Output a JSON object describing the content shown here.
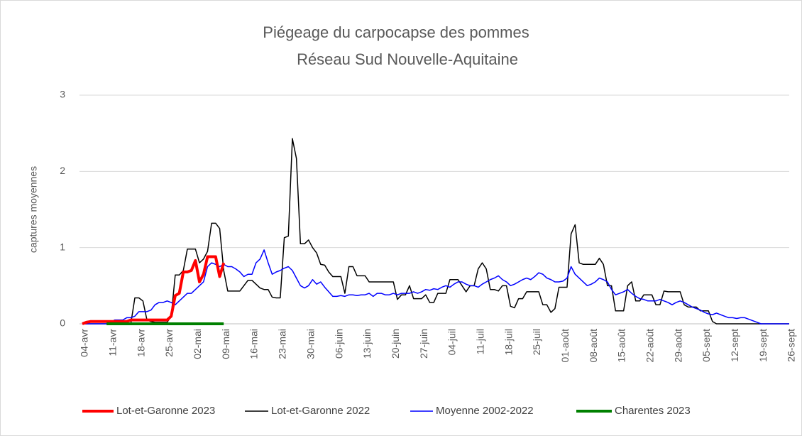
{
  "chart_data": {
    "type": "line",
    "title": "Piégeage du carpocapse des pommes",
    "subtitle": "Réseau Sud Nouvelle-Aquitaine",
    "y_label": "captures moyennes",
    "ylim": [
      0,
      3
    ],
    "yticks": [
      0,
      1,
      2,
      3
    ],
    "grid": true,
    "legend": "bottom",
    "categories": [
      "04-avr",
      null,
      null,
      null,
      null,
      null,
      null,
      "11-avr",
      null,
      null,
      null,
      null,
      null,
      null,
      "18-avr",
      null,
      null,
      null,
      null,
      null,
      null,
      "25-avr",
      null,
      null,
      null,
      null,
      null,
      null,
      "02-mai",
      null,
      null,
      null,
      null,
      null,
      null,
      "09-mai",
      null,
      null,
      null,
      null,
      null,
      null,
      "16-mai",
      null,
      null,
      null,
      null,
      null,
      null,
      "23-mai",
      null,
      null,
      null,
      null,
      null,
      null,
      "30-mai",
      null,
      null,
      null,
      null,
      null,
      null,
      "06-juin",
      null,
      null,
      null,
      null,
      null,
      null,
      "13-juin",
      null,
      null,
      null,
      null,
      null,
      null,
      "20-juin",
      null,
      null,
      null,
      null,
      null,
      null,
      "27-juin",
      null,
      null,
      null,
      null,
      null,
      null,
      "04-juil",
      null,
      null,
      null,
      null,
      null,
      null,
      "11-juil",
      null,
      null,
      null,
      null,
      null,
      null,
      "18-juil",
      null,
      null,
      null,
      null,
      null,
      null,
      "25-juil",
      null,
      null,
      null,
      null,
      null,
      null,
      "01-août",
      null,
      null,
      null,
      null,
      null,
      null,
      "08-août",
      null,
      null,
      null,
      null,
      null,
      null,
      "15-août",
      null,
      null,
      null,
      null,
      null,
      null,
      "22-août",
      null,
      null,
      null,
      null,
      null,
      null,
      "29-août",
      null,
      null,
      null,
      null,
      null,
      null,
      "05-sept",
      null,
      null,
      null,
      null,
      null,
      null,
      "12-sept",
      null,
      null,
      null,
      null,
      null,
      null,
      "19-sept",
      null,
      null,
      null,
      null,
      null,
      null,
      "26-sept"
    ],
    "series": [
      {
        "name": "Lot-et-Garonne 2023",
        "color": "#ff0000",
        "values": [
          0,
          0.02,
          0.03,
          0.03,
          0.03,
          0.03,
          0.03,
          0.03,
          0.03,
          0.03,
          0.03,
          0.03,
          0.05,
          0.05,
          0.05,
          0.05,
          0.05,
          0.05,
          0.05,
          0.05,
          0.05,
          0.05,
          0.1,
          0.37,
          0.4,
          0.68,
          0.68,
          0.7,
          0.83,
          0.55,
          0.65,
          0.88,
          0.88,
          0.88,
          0.62,
          0.8,
          null,
          null,
          null,
          null,
          null,
          null,
          null,
          null,
          null,
          null,
          null,
          null,
          null,
          null,
          null,
          null,
          null,
          null,
          null,
          null,
          null,
          null,
          null,
          null,
          null,
          null,
          null,
          null,
          null,
          null,
          null,
          null,
          null,
          null,
          null,
          null,
          null,
          null,
          null,
          null,
          null,
          null,
          null,
          null,
          null,
          null,
          null,
          null,
          null,
          null,
          null,
          null,
          null,
          null,
          null,
          null,
          null,
          null,
          null,
          null,
          null,
          null,
          null,
          null,
          null,
          null,
          null,
          null,
          null,
          null,
          null,
          null,
          null,
          null,
          null,
          null,
          null,
          null,
          null,
          null,
          null,
          null,
          null,
          null,
          null,
          null,
          null,
          null,
          null,
          null,
          null,
          null,
          null,
          null,
          null,
          null,
          null,
          null,
          null,
          null,
          null,
          null,
          null,
          null,
          null,
          null,
          null,
          null,
          null,
          null,
          null,
          null,
          null,
          null,
          null,
          null,
          null,
          null,
          null,
          null,
          null,
          null,
          null,
          null,
          null,
          null,
          null,
          null,
          null,
          null,
          null,
          null,
          null,
          null,
          null,
          null,
          null,
          null,
          null,
          null
        ]
      },
      {
        "name": "Lot-et-Garonne 2022",
        "color": "#000000",
        "values": [
          0,
          0,
          0,
          0,
          0,
          0,
          0,
          0,
          0,
          0,
          0,
          0,
          0,
          0.34,
          0.34,
          0.3,
          0.05,
          0.03,
          0.02,
          0.02,
          0.02,
          0.02,
          0.1,
          0.64,
          0.64,
          0.7,
          0.98,
          0.98,
          0.98,
          0.8,
          0.85,
          0.95,
          1.32,
          1.32,
          1.25,
          0.7,
          0.43,
          0.43,
          0.43,
          0.43,
          0.5,
          0.57,
          0.57,
          0.52,
          0.47,
          0.45,
          0.45,
          0.35,
          0.34,
          0.34,
          1.13,
          1.15,
          2.43,
          2.17,
          1.05,
          1.05,
          1.1,
          1.0,
          0.93,
          0.78,
          0.77,
          0.68,
          0.62,
          0.62,
          0.62,
          0.4,
          0.75,
          0.75,
          0.63,
          0.63,
          0.63,
          0.55,
          0.55,
          0.55,
          0.55,
          0.55,
          0.55,
          0.55,
          0.32,
          0.38,
          0.38,
          0.5,
          0.33,
          0.33,
          0.33,
          0.38,
          0.28,
          0.28,
          0.4,
          0.4,
          0.4,
          0.58,
          0.58,
          0.58,
          0.5,
          0.42,
          0.5,
          0.5,
          0.72,
          0.8,
          0.72,
          0.45,
          0.45,
          0.43,
          0.5,
          0.5,
          0.23,
          0.21,
          0.33,
          0.33,
          0.42,
          0.42,
          0.42,
          0.42,
          0.25,
          0.25,
          0.15,
          0.2,
          0.48,
          0.48,
          0.48,
          1.18,
          1.3,
          0.8,
          0.78,
          0.78,
          0.78,
          0.78,
          0.86,
          0.78,
          0.5,
          0.5,
          0.17,
          0.17,
          0.17,
          0.5,
          0.55,
          0.3,
          0.3,
          0.38,
          0.38,
          0.38,
          0.25,
          0.25,
          0.43,
          0.42,
          0.42,
          0.42,
          0.42,
          0.25,
          0.22,
          0.22,
          0.22,
          0.17,
          0.17,
          0.17,
          0.03,
          0,
          0,
          0,
          0,
          0,
          0,
          0,
          0,
          0,
          0,
          0,
          0,
          0,
          0,
          0,
          0,
          0,
          0,
          0
        ]
      },
      {
        "name": "Moyenne 2002-2022",
        "color": "#0000ff",
        "values": [
          0,
          0,
          0,
          0,
          0,
          0,
          0,
          0.02,
          0.05,
          0.05,
          0.05,
          0.08,
          0.08,
          0.1,
          0.16,
          0.16,
          0.16,
          0.18,
          0.25,
          0.28,
          0.28,
          0.3,
          0.28,
          0.25,
          0.3,
          0.35,
          0.4,
          0.4,
          0.45,
          0.5,
          0.55,
          0.75,
          0.8,
          0.78,
          0.75,
          0.78,
          0.75,
          0.75,
          0.72,
          0.68,
          0.62,
          0.65,
          0.65,
          0.8,
          0.85,
          0.97,
          0.8,
          0.65,
          0.68,
          0.7,
          0.73,
          0.75,
          0.7,
          0.6,
          0.5,
          0.47,
          0.5,
          0.58,
          0.52,
          0.55,
          0.48,
          0.42,
          0.36,
          0.36,
          0.37,
          0.36,
          0.38,
          0.38,
          0.37,
          0.38,
          0.38,
          0.4,
          0.36,
          0.4,
          0.4,
          0.38,
          0.38,
          0.4,
          0.38,
          0.4,
          0.4,
          0.4,
          0.42,
          0.4,
          0.42,
          0.45,
          0.44,
          0.46,
          0.45,
          0.48,
          0.5,
          0.48,
          0.52,
          0.55,
          0.55,
          0.52,
          0.5,
          0.5,
          0.48,
          0.52,
          0.55,
          0.58,
          0.6,
          0.63,
          0.58,
          0.55,
          0.5,
          0.52,
          0.55,
          0.58,
          0.6,
          0.58,
          0.62,
          0.67,
          0.65,
          0.6,
          0.58,
          0.55,
          0.55,
          0.56,
          0.6,
          0.75,
          0.65,
          0.6,
          0.55,
          0.5,
          0.52,
          0.55,
          0.6,
          0.58,
          0.55,
          0.45,
          0.38,
          0.4,
          0.42,
          0.45,
          0.4,
          0.36,
          0.33,
          0.32,
          0.3,
          0.3,
          0.3,
          0.32,
          0.3,
          0.28,
          0.25,
          0.28,
          0.3,
          0.28,
          0.25,
          0.22,
          0.2,
          0.18,
          0.15,
          0.13,
          0.12,
          0.14,
          0.12,
          0.1,
          0.08,
          0.08,
          0.07,
          0.08,
          0.08,
          0.06,
          0.04,
          0.02,
          0,
          0,
          0,
          0,
          0,
          0,
          0,
          0
        ]
      },
      {
        "name": "Charentes 2023",
        "color": "#008000",
        "values": [
          null,
          null,
          null,
          null,
          null,
          null,
          0,
          0,
          0,
          0,
          0,
          0,
          0,
          0,
          0,
          0,
          0,
          0,
          0,
          0,
          0,
          0,
          0,
          0,
          0,
          0,
          0,
          0,
          0,
          0,
          0,
          0,
          0,
          0,
          0,
          0,
          null,
          null,
          null,
          null,
          null,
          null,
          null,
          null,
          null,
          null,
          null,
          null,
          null,
          null,
          null,
          null,
          null,
          null,
          null,
          null,
          null,
          null,
          null,
          null,
          null,
          null,
          null,
          null,
          null,
          null,
          null,
          null,
          null,
          null,
          null,
          null,
          null,
          null,
          null,
          null,
          null,
          null,
          null,
          null,
          null,
          null,
          null,
          null,
          null,
          null,
          null,
          null,
          null,
          null,
          null,
          null,
          null,
          null,
          null,
          null,
          null,
          null,
          null,
          null,
          null,
          null,
          null,
          null,
          null,
          null,
          null,
          null,
          null,
          null,
          null,
          null,
          null,
          null,
          null,
          null,
          null,
          null,
          null,
          null,
          null,
          null,
          null,
          null,
          null,
          null,
          null,
          null,
          null,
          null,
          null,
          null,
          null,
          null,
          null,
          null,
          null,
          null,
          null,
          null,
          null,
          null,
          null,
          null,
          null,
          null,
          null,
          null,
          null,
          null,
          null,
          null,
          null,
          null,
          null,
          null,
          null,
          null,
          null,
          null,
          null,
          null,
          null,
          null,
          null,
          null,
          null,
          null,
          null,
          null,
          null,
          null,
          null,
          null,
          null,
          null
        ]
      }
    ]
  }
}
